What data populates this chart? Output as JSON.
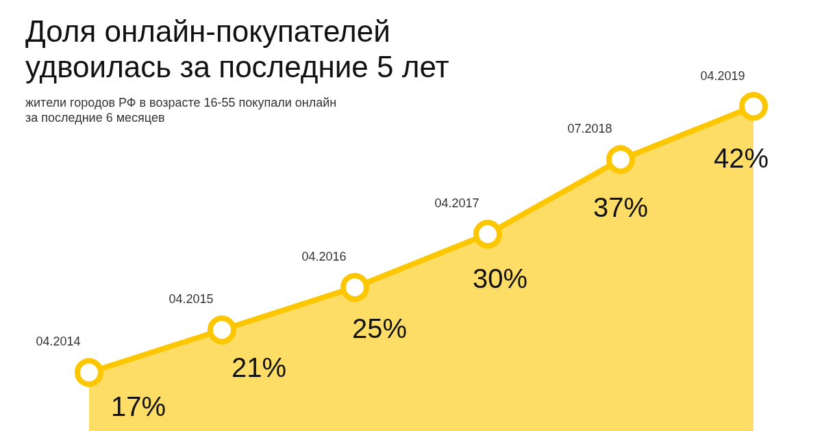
{
  "chart_data": {
    "type": "area",
    "title": "Доля онлайн-покупателей удвоилась за последние 5 лет",
    "subtitle": "жители городов РФ в возрасте 16-55 покупали онлайн за последние 6 месяцев",
    "categories": [
      "04.2014",
      "04.2015",
      "04.2016",
      "04.2017",
      "07.2018",
      "04.2019"
    ],
    "values": [
      17,
      21,
      25,
      30,
      37,
      42
    ],
    "value_labels": [
      "17%",
      "21%",
      "25%",
      "30%",
      "37%",
      "42%"
    ],
    "tick_labels": false,
    "color": "#fcc700",
    "marker": "circle"
  }
}
